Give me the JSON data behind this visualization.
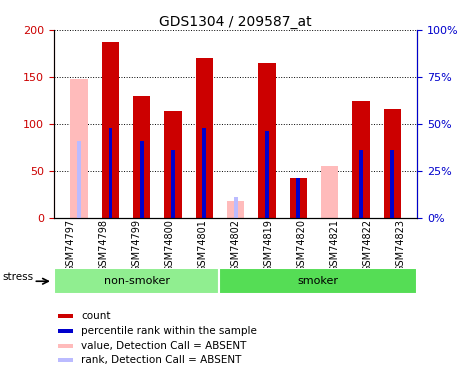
{
  "title": "GDS1304 / 209587_at",
  "samples": [
    "GSM74797",
    "GSM74798",
    "GSM74799",
    "GSM74800",
    "GSM74801",
    "GSM74802",
    "GSM74819",
    "GSM74820",
    "GSM74821",
    "GSM74822",
    "GSM74823"
  ],
  "count_values": [
    0,
    187,
    130,
    114,
    170,
    0,
    165,
    42,
    0,
    124,
    116
  ],
  "rank_values_pct": [
    0,
    48,
    41,
    36,
    48,
    0,
    46,
    21,
    0,
    36,
    36
  ],
  "absent_value": [
    148,
    0,
    0,
    0,
    0,
    18,
    0,
    0,
    55,
    0,
    0
  ],
  "absent_rank_pct": [
    41,
    0,
    0,
    0,
    0,
    11,
    0,
    0,
    0,
    0,
    0
  ],
  "is_absent": [
    true,
    false,
    false,
    false,
    false,
    true,
    false,
    false,
    true,
    false,
    false
  ],
  "non_smoker_count": 5,
  "smoker_count": 6,
  "ylim_left": [
    0,
    200
  ],
  "ylim_right": [
    0,
    100
  ],
  "yticks_left": [
    0,
    50,
    100,
    150,
    200
  ],
  "yticks_right": [
    0,
    25,
    50,
    75,
    100
  ],
  "ytick_labels_left": [
    "0",
    "50",
    "100",
    "150",
    "200"
  ],
  "ytick_labels_right": [
    "0%",
    "25%",
    "50%",
    "75%",
    "100%"
  ],
  "color_count": "#cc0000",
  "color_rank": "#0000cc",
  "color_absent_value": "#ffbbbb",
  "color_absent_rank": "#bbbbff",
  "bar_width": 0.55,
  "rank_bar_width": 0.12,
  "color_nonsmoker": "#90EE90",
  "color_smoker": "#55DD55",
  "color_xtick_bg": "#c8c8c8",
  "figsize": [
    4.69,
    3.75
  ],
  "dpi": 100
}
